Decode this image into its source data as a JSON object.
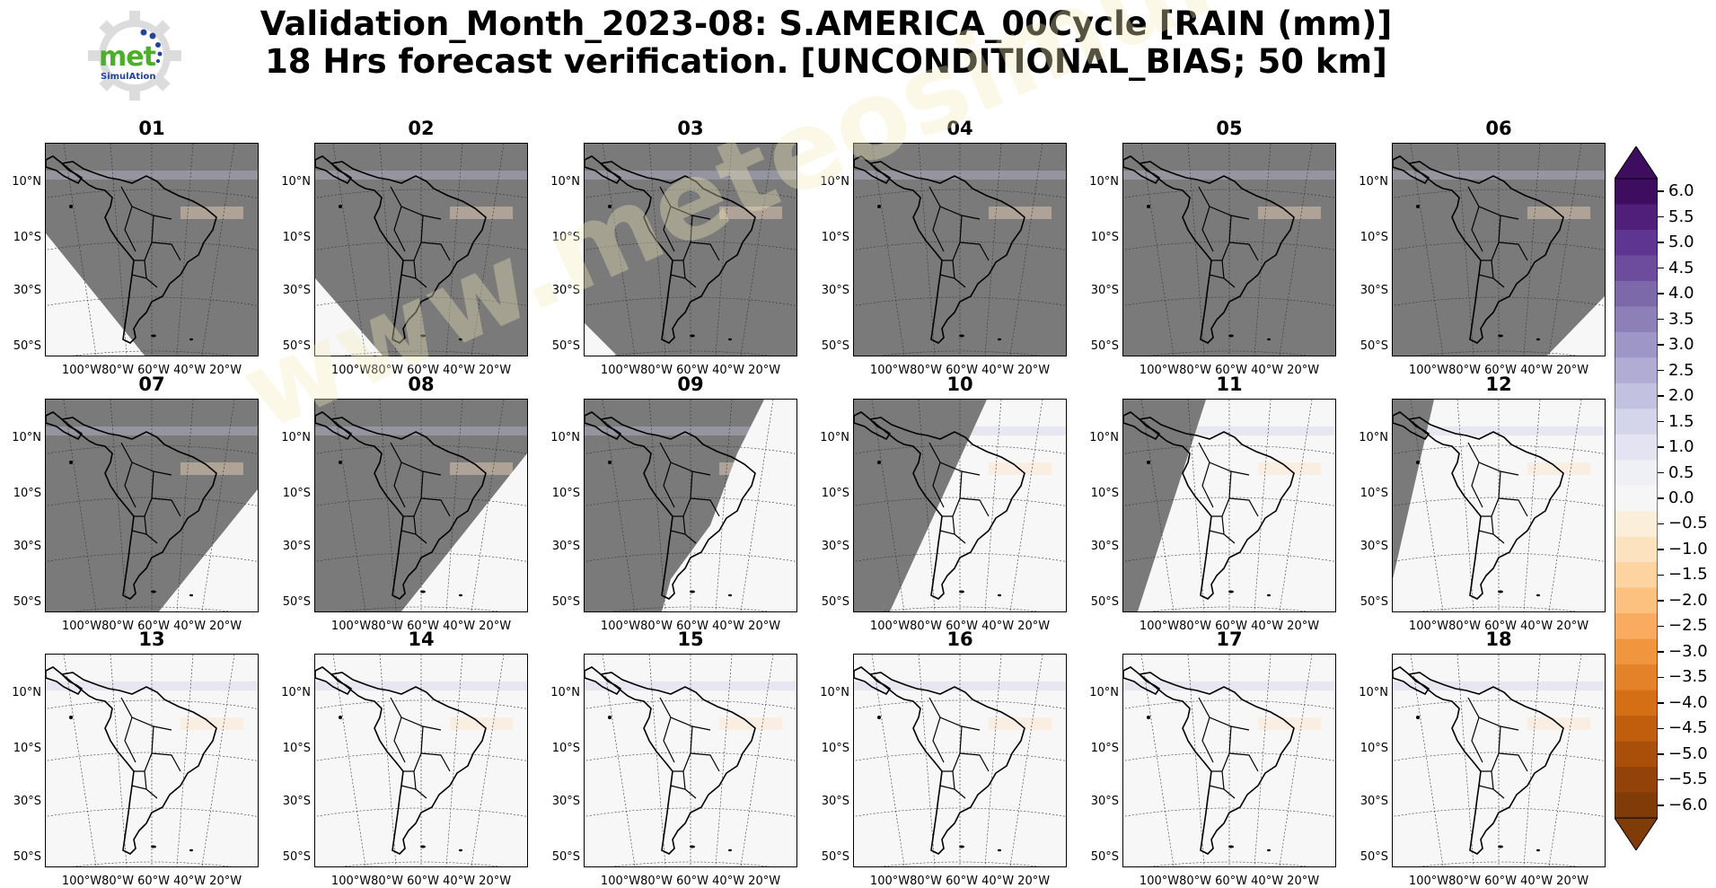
{
  "title": {
    "line1": "Validation_Month_2023-08: S.AMERICA_00Cycle [RAIN (mm)]",
    "line2": "18 Hrs forecast verification. [UNCONDITIONAL_BIAS; 50 km]"
  },
  "logo": {
    "text": "met",
    "subtext": "SimulAtion"
  },
  "watermark": "www.meteosimulation.com",
  "latitude_labels": [
    "10°N",
    "10°S",
    "30°S",
    "50°S"
  ],
  "longitude_labels": "100°W80°W 60°W 40°W 20°W",
  "panels": [
    {
      "label": "01",
      "coverage": "full-dark",
      "mask": "sw-corner-light"
    },
    {
      "label": "02",
      "coverage": "full-dark",
      "mask": "sw-corner-light-small"
    },
    {
      "label": "03",
      "coverage": "full-dark",
      "mask": "sw-corner-light-tiny"
    },
    {
      "label": "04",
      "coverage": "full-dark",
      "mask": "none"
    },
    {
      "label": "05",
      "coverage": "full-dark",
      "mask": "none"
    },
    {
      "label": "06",
      "coverage": "full-dark",
      "mask": "se-corner-light"
    },
    {
      "label": "07",
      "coverage": "dark",
      "mask": "se-light-small"
    },
    {
      "label": "08",
      "coverage": "dark",
      "mask": "se-light-large"
    },
    {
      "label": "09",
      "coverage": "dark",
      "mask": "east-light"
    },
    {
      "label": "10",
      "coverage": "dark",
      "mask": "west-dark"
    },
    {
      "label": "11",
      "coverage": "dark",
      "mask": "west-dark-narrow"
    },
    {
      "label": "12",
      "coverage": "dark",
      "mask": "west-dark-sliver"
    },
    {
      "label": "13",
      "coverage": "light",
      "mask": "none"
    },
    {
      "label": "14",
      "coverage": "light",
      "mask": "none"
    },
    {
      "label": "15",
      "coverage": "light",
      "mask": "none"
    },
    {
      "label": "16",
      "coverage": "light",
      "mask": "none"
    },
    {
      "label": "17",
      "coverage": "light",
      "mask": "none"
    },
    {
      "label": "18",
      "coverage": "light",
      "mask": "none"
    }
  ],
  "colorbar": {
    "ticks": [
      "6.0",
      "5.5",
      "5.0",
      "4.5",
      "4.0",
      "3.5",
      "3.0",
      "2.5",
      "2.0",
      "1.5",
      "1.0",
      "0.5",
      "0.0",
      "−0.5",
      "−1.0",
      "−1.5",
      "−2.0",
      "−2.5",
      "−3.0",
      "−3.5",
      "−4.0",
      "−4.5",
      "−5.0",
      "−5.5",
      "−6.0"
    ],
    "colors_top_to_bottom": [
      "#3f0d5f",
      "#4f1f7a",
      "#5e3590",
      "#6d4c9e",
      "#7d68aa",
      "#8d7fb8",
      "#9e96c6",
      "#b0acd4",
      "#c2c2e0",
      "#d4d4ea",
      "#e3e3f1",
      "#efeff6",
      "#f6f6f6",
      "#fbeedb",
      "#fde2c0",
      "#fdd3a0",
      "#fcc07f",
      "#f9ab5f",
      "#f0963f",
      "#e38228",
      "#d46f16",
      "#c05e0e",
      "#a94f0a",
      "#934209",
      "#7f3b08"
    ]
  }
}
